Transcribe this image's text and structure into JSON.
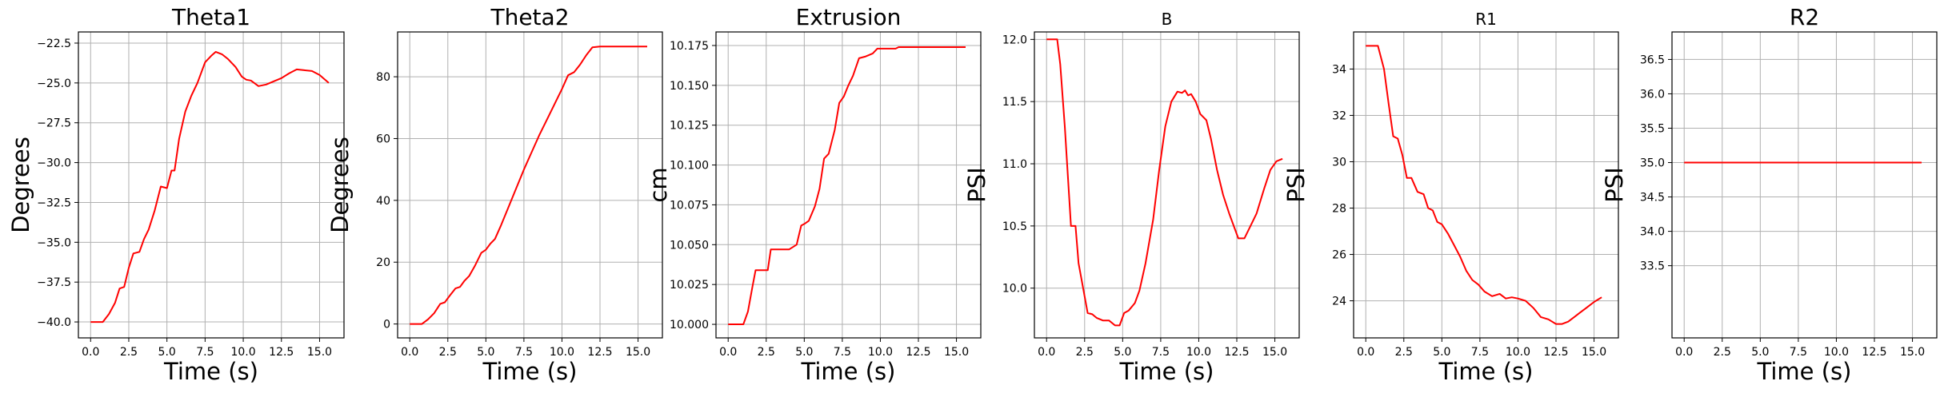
{
  "colors": {
    "series": "#ff0000",
    "grid": "#b0b0b0",
    "spine": "#000000"
  },
  "chart_data": [
    {
      "type": "line",
      "title": "Theta1",
      "title_size": "large",
      "xlabel": "Time (s)",
      "ylabel": "Degrees",
      "grid": true,
      "xlim": [
        -0.8,
        16.6
      ],
      "ylim": [
        -41.0,
        -21.8
      ],
      "xticks": [
        0.0,
        2.5,
        5.0,
        7.5,
        10.0,
        12.5,
        15.0
      ],
      "xticklabels": [
        "0.0",
        "2.5",
        "5.0",
        "7.5",
        "10.0",
        "12.5",
        "15.0"
      ],
      "yticks": [
        -40.0,
        -37.5,
        -35.0,
        -32.5,
        -30.0,
        -27.5,
        -25.0,
        -22.5
      ],
      "yticklabels": [
        "−40.0",
        "−37.5",
        "−35.0",
        "−32.5",
        "−30.0",
        "−27.5",
        "−25.0",
        "−22.5"
      ],
      "series": [
        {
          "color": "#ff0000",
          "x": [
            0.0,
            0.8,
            1.2,
            1.6,
            1.9,
            2.2,
            2.5,
            2.8,
            3.2,
            3.5,
            3.8,
            4.2,
            4.6,
            5.0,
            5.3,
            5.5,
            5.8,
            6.2,
            6.6,
            7.0,
            7.5,
            7.9,
            8.2,
            8.6,
            9.0,
            9.5,
            9.9,
            10.2,
            10.5,
            11.0,
            11.5,
            12.0,
            12.5,
            13.0,
            13.5,
            14.0,
            14.5,
            15.0,
            15.6
          ],
          "y": [
            -40.0,
            -40.0,
            -39.5,
            -38.8,
            -37.9,
            -37.8,
            -36.6,
            -35.7,
            -35.6,
            -34.8,
            -34.2,
            -33.0,
            -31.5,
            -31.6,
            -30.5,
            -30.5,
            -28.5,
            -26.8,
            -25.8,
            -25.0,
            -23.7,
            -23.3,
            -23.05,
            -23.2,
            -23.5,
            -24.0,
            -24.6,
            -24.8,
            -24.85,
            -25.2,
            -25.1,
            -24.9,
            -24.7,
            -24.4,
            -24.15,
            -24.2,
            -24.25,
            -24.5,
            -25.0
          ]
        }
      ]
    },
    {
      "type": "line",
      "title": "Theta2",
      "title_size": "large",
      "xlabel": "Time (s)",
      "ylabel": "Degrees",
      "grid": true,
      "xlim": [
        -0.8,
        16.6
      ],
      "ylim": [
        -4.5,
        94.5
      ],
      "xticks": [
        0.0,
        2.5,
        5.0,
        7.5,
        10.0,
        12.5,
        15.0
      ],
      "xticklabels": [
        "0.0",
        "2.5",
        "5.0",
        "7.5",
        "10.0",
        "12.5",
        "15.0"
      ],
      "yticks": [
        0,
        20,
        40,
        60,
        80
      ],
      "yticklabels": [
        "0",
        "20",
        "40",
        "60",
        "80"
      ],
      "series": [
        {
          "color": "#ff0000",
          "x": [
            0.0,
            0.8,
            1.2,
            1.6,
            2.0,
            2.3,
            2.6,
            3.0,
            3.3,
            3.6,
            3.9,
            4.3,
            4.7,
            5.0,
            5.3,
            5.6,
            6.0,
            6.5,
            7.0,
            7.5,
            8.0,
            8.5,
            9.0,
            9.5,
            10.0,
            10.4,
            10.8,
            11.2,
            11.6,
            12.0,
            12.5,
            13.0,
            14.0,
            15.0,
            15.6
          ],
          "y": [
            0.0,
            0.0,
            1.5,
            3.5,
            6.5,
            7.0,
            9.0,
            11.5,
            12.0,
            14.0,
            15.5,
            19.0,
            23.0,
            24.0,
            26.0,
            27.5,
            32.0,
            38.0,
            44.0,
            50.0,
            55.5,
            61.0,
            66.0,
            71.0,
            76.0,
            80.5,
            81.5,
            84.0,
            87.0,
            89.5,
            89.8,
            89.8,
            89.8,
            89.8,
            89.8
          ]
        }
      ]
    },
    {
      "type": "line",
      "title": "Extrusion",
      "title_size": "large",
      "xlabel": "Time (s)",
      "ylabel": "cm",
      "grid": true,
      "xlim": [
        -0.8,
        16.6
      ],
      "ylim": [
        9.9915,
        10.1835
      ],
      "xticks": [
        0.0,
        2.5,
        5.0,
        7.5,
        10.0,
        12.5,
        15.0
      ],
      "xticklabels": [
        "0.0",
        "2.5",
        "5.0",
        "7.5",
        "10.0",
        "12.5",
        "15.0"
      ],
      "yticks": [
        10.0,
        10.025,
        10.05,
        10.075,
        10.1,
        10.125,
        10.15,
        10.175
      ],
      "yticklabels": [
        "10.000",
        "10.025",
        "10.050",
        "10.075",
        "10.100",
        "10.125",
        "10.150",
        "10.175"
      ],
      "series": [
        {
          "color": "#ff0000",
          "x": [
            0.0,
            1.0,
            1.3,
            1.6,
            1.8,
            2.2,
            2.6,
            2.8,
            3.3,
            4.0,
            4.5,
            4.8,
            5.0,
            5.3,
            5.7,
            6.0,
            6.3,
            6.6,
            7.0,
            7.3,
            7.6,
            7.9,
            8.2,
            8.6,
            9.0,
            9.5,
            9.8,
            10.0,
            10.5,
            11.0,
            11.2,
            12.0,
            13.0,
            14.0,
            15.0,
            15.6
          ],
          "y": [
            10.0,
            10.0,
            10.008,
            10.024,
            10.034,
            10.034,
            10.034,
            10.047,
            10.047,
            10.047,
            10.05,
            10.062,
            10.063,
            10.065,
            10.074,
            10.085,
            10.104,
            10.107,
            10.122,
            10.139,
            10.143,
            10.15,
            10.156,
            10.167,
            10.168,
            10.17,
            10.173,
            10.173,
            10.173,
            10.173,
            10.174,
            10.174,
            10.174,
            10.174,
            10.174,
            10.174
          ]
        }
      ]
    },
    {
      "type": "line",
      "title": "B",
      "title_size": "small",
      "xlabel": "Time (s)",
      "ylabel": "PSI",
      "grid": true,
      "xlim": [
        -0.8,
        16.6
      ],
      "ylim": [
        9.6,
        12.06
      ],
      "xticks": [
        0.0,
        2.5,
        5.0,
        7.5,
        10.0,
        12.5,
        15.0
      ],
      "xticklabels": [
        "0.0",
        "2.5",
        "5.0",
        "7.5",
        "10.0",
        "12.5",
        "15.0"
      ],
      "yticks": [
        10.0,
        10.5,
        11.0,
        11.5,
        12.0
      ],
      "yticklabels": [
        "10.0",
        "10.5",
        "11.0",
        "11.5",
        "12.0"
      ],
      "series": [
        {
          "color": "#ff0000",
          "x": [
            0.0,
            0.7,
            0.9,
            1.2,
            1.6,
            1.9,
            2.1,
            2.4,
            2.7,
            3.0,
            3.3,
            3.7,
            4.1,
            4.5,
            4.8,
            5.1,
            5.4,
            5.8,
            6.1,
            6.5,
            7.0,
            7.4,
            7.8,
            8.2,
            8.6,
            8.9,
            9.1,
            9.3,
            9.5,
            9.8,
            10.1,
            10.5,
            10.8,
            11.2,
            11.6,
            12.0,
            12.3,
            12.6,
            13.0,
            13.4,
            13.8,
            14.3,
            14.7,
            15.1,
            15.5
          ],
          "y": [
            12.0,
            12.0,
            11.8,
            11.3,
            10.5,
            10.5,
            10.2,
            10.0,
            9.8,
            9.79,
            9.76,
            9.74,
            9.74,
            9.7,
            9.7,
            9.8,
            9.82,
            9.88,
            9.98,
            10.2,
            10.55,
            10.95,
            11.3,
            11.5,
            11.58,
            11.57,
            11.59,
            11.55,
            11.56,
            11.5,
            11.4,
            11.35,
            11.2,
            10.95,
            10.75,
            10.6,
            10.5,
            10.4,
            10.4,
            10.5,
            10.6,
            10.8,
            10.95,
            11.02,
            11.04
          ]
        }
      ]
    },
    {
      "type": "line",
      "title": "R1",
      "title_size": "small",
      "xlabel": "Time (s)",
      "ylabel": "PSI",
      "grid": true,
      "xlim": [
        -0.8,
        16.6
      ],
      "ylim": [
        22.4,
        35.6
      ],
      "xticks": [
        0.0,
        2.5,
        5.0,
        7.5,
        10.0,
        12.5,
        15.0
      ],
      "xticklabels": [
        "0.0",
        "2.5",
        "5.0",
        "7.5",
        "10.0",
        "12.5",
        "15.0"
      ],
      "yticks": [
        24,
        26,
        28,
        30,
        32,
        34
      ],
      "yticklabels": [
        "24",
        "26",
        "28",
        "30",
        "32",
        "34"
      ],
      "series": [
        {
          "color": "#ff0000",
          "x": [
            0.0,
            0.8,
            1.2,
            1.5,
            1.8,
            2.1,
            2.4,
            2.7,
            3.0,
            3.4,
            3.8,
            4.1,
            4.4,
            4.7,
            5.0,
            5.4,
            5.8,
            6.2,
            6.6,
            7.0,
            7.4,
            7.8,
            8.3,
            8.8,
            9.2,
            9.6,
            10.0,
            10.5,
            11.0,
            11.5,
            12.0,
            12.5,
            12.9,
            13.3,
            13.7,
            14.1,
            14.5,
            15.0,
            15.5
          ],
          "y": [
            35.0,
            35.0,
            34.0,
            32.5,
            31.1,
            31.0,
            30.3,
            29.3,
            29.3,
            28.7,
            28.6,
            28.0,
            27.9,
            27.4,
            27.3,
            26.9,
            26.4,
            25.9,
            25.3,
            24.9,
            24.7,
            24.4,
            24.2,
            24.3,
            24.1,
            24.15,
            24.1,
            24.0,
            23.7,
            23.3,
            23.2,
            23.0,
            23.0,
            23.1,
            23.3,
            23.5,
            23.7,
            23.95,
            24.15
          ]
        }
      ]
    },
    {
      "type": "line",
      "title": "R2",
      "title_size": "large",
      "xlabel": "Time (s)",
      "ylabel": "PSI",
      "grid": true,
      "xlim": [
        -0.8,
        16.6
      ],
      "ylim": [
        32.45,
        36.9
      ],
      "xticks": [
        0.0,
        2.5,
        5.0,
        7.5,
        10.0,
        12.5,
        15.0
      ],
      "xticklabels": [
        "0.0",
        "2.5",
        "5.0",
        "7.5",
        "10.0",
        "12.5",
        "15.0"
      ],
      "yticks": [
        33.5,
        34.0,
        34.5,
        35.0,
        35.5,
        36.0,
        36.5
      ],
      "yticklabels": [
        "33.5",
        "34.0",
        "34.5",
        "35.0",
        "35.5",
        "36.0",
        "36.5"
      ],
      "series": [
        {
          "color": "#ff0000",
          "x": [
            0.0,
            15.6
          ],
          "y": [
            35.0,
            35.0
          ]
        }
      ]
    }
  ]
}
